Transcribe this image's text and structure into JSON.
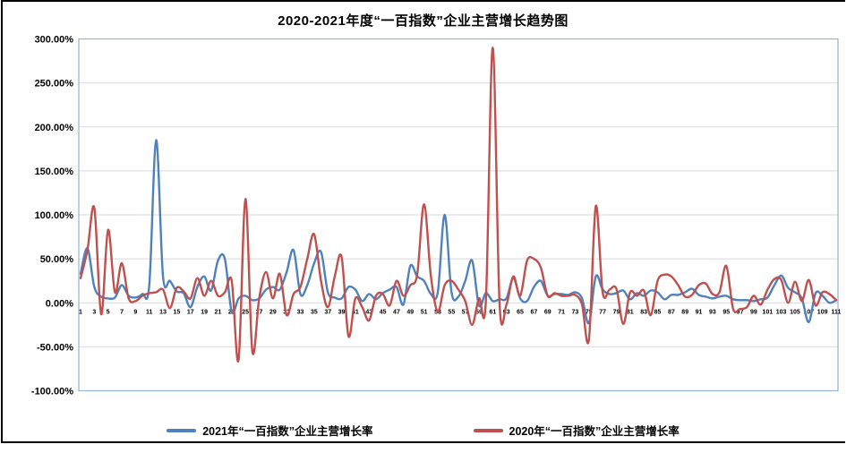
{
  "chart_data": {
    "type": "line",
    "title": "2020-2021年度“一百指数”企业主营增长趋势图",
    "xlabel": "",
    "ylabel": "",
    "x_start": 1,
    "x_end": 111,
    "x_ticks": [
      1,
      3,
      5,
      7,
      9,
      11,
      13,
      15,
      17,
      19,
      21,
      23,
      25,
      27,
      29,
      31,
      33,
      35,
      37,
      39,
      41,
      43,
      45,
      47,
      49,
      51,
      53,
      55,
      57,
      59,
      61,
      63,
      65,
      67,
      69,
      71,
      73,
      75,
      77,
      79,
      81,
      83,
      85,
      87,
      89,
      91,
      93,
      95,
      97,
      99,
      101,
      103,
      105,
      107,
      109,
      111
    ],
    "y_ticks": [
      "300.00%",
      "250.00%",
      "200.00%",
      "150.00%",
      "100.00%",
      "50.00%",
      "0.00%",
      "-50.00%",
      "-100.00%"
    ],
    "ylim": [
      -100,
      300
    ],
    "y_unit": "percent",
    "grid": true,
    "legend_position": "bottom",
    "colors": {
      "series_2021": "#4F81BD",
      "series_2020": "#C0504D",
      "gridline": "#D9D9D9",
      "plot_border": "#95B3D7"
    },
    "series": [
      {
        "name": "2021年“一百指数”企业主营增长率",
        "color": "#4F81BD",
        "values": [
          33,
          62,
          18,
          7,
          5,
          6,
          20,
          8,
          6,
          10,
          20,
          185,
          30,
          25,
          13,
          11,
          -5,
          18,
          30,
          14,
          48,
          50,
          -10,
          5,
          8,
          3,
          5,
          15,
          18,
          15,
          35,
          60,
          10,
          20,
          45,
          58,
          12,
          6,
          5,
          18,
          15,
          2,
          10,
          4,
          11,
          15,
          18,
          -2,
          42,
          30,
          25,
          10,
          12,
          100,
          12,
          7,
          25,
          48,
          -3,
          11,
          2,
          4,
          5,
          28,
          5,
          2,
          18,
          25,
          8,
          10,
          10,
          9,
          12,
          5,
          -23,
          30,
          15,
          10,
          11,
          14,
          4,
          11,
          8,
          14,
          12,
          4,
          9,
          9,
          12,
          16,
          9,
          7,
          5,
          7,
          8,
          4,
          3,
          3,
          2,
          4,
          6,
          20,
          31,
          17,
          12,
          5,
          -22,
          11,
          8,
          0,
          3
        ]
      },
      {
        "name": "2020年“一百指数”企业主营增长率",
        "color": "#C0504D",
        "values": [
          28,
          60,
          108,
          -13,
          83,
          12,
          45,
          5,
          2,
          8,
          11,
          12,
          15,
          -6,
          17,
          13,
          5,
          28,
          8,
          25,
          8,
          12,
          25,
          -65,
          118,
          -55,
          5,
          35,
          5,
          33,
          -14,
          10,
          18,
          50,
          78,
          25,
          -5,
          30,
          52,
          -38,
          5,
          -5,
          -20,
          8,
          10,
          -3,
          25,
          8,
          20,
          32,
          112,
          30,
          -10,
          20,
          25,
          15,
          2,
          -25,
          5,
          2,
          290,
          -2,
          -2,
          30,
          8,
          48,
          50,
          40,
          8,
          11,
          8,
          8,
          9,
          -2,
          -42,
          110,
          12,
          15,
          16,
          -24,
          12,
          8,
          14,
          -14,
          25,
          32,
          30,
          20,
          7,
          9,
          20,
          22,
          10,
          12,
          42,
          -7,
          -7,
          -5,
          8,
          -2,
          15,
          27,
          26,
          0,
          24,
          2,
          26,
          -3,
          12,
          10,
          3
        ]
      }
    ]
  }
}
